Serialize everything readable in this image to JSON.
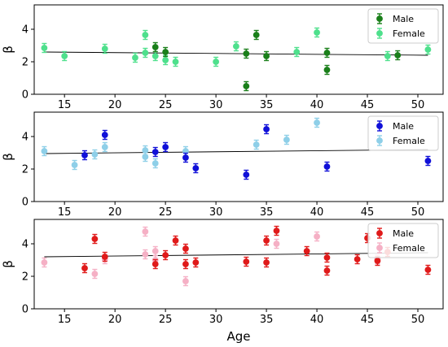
{
  "chart_data": [
    {
      "type": "scatter",
      "ylabel": "β",
      "xlabel": "",
      "xlim": [
        12,
        52.5
      ],
      "ylim": [
        0,
        5.5
      ],
      "x_ticks": [
        "15",
        "20",
        "25",
        "30",
        "35",
        "40",
        "45",
        "50"
      ],
      "y_ticks": [
        "0",
        "2",
        "4"
      ],
      "legend_position": "top-right",
      "series": [
        {
          "name": "Male",
          "color": "#1a7f1a",
          "points": [
            [
              24,
              2.9
            ],
            [
              25,
              2.6
            ],
            [
              33,
              2.5
            ],
            [
              33,
              0.5
            ],
            [
              34,
              3.65
            ],
            [
              35,
              2.35
            ],
            [
              41,
              2.55
            ],
            [
              41,
              1.5
            ],
            [
              48,
              2.4
            ]
          ]
        },
        {
          "name": "Female",
          "color": "#4ee08c",
          "points": [
            [
              13,
              2.85
            ],
            [
              15,
              2.35
            ],
            [
              19,
              2.8
            ],
            [
              22,
              2.25
            ],
            [
              23,
              2.55
            ],
            [
              23,
              3.65
            ],
            [
              24,
              2.35
            ],
            [
              25,
              2.1
            ],
            [
              26,
              2.0
            ],
            [
              30,
              2.0
            ],
            [
              32,
              2.95
            ],
            [
              38,
              2.6
            ],
            [
              40,
              3.8
            ],
            [
              47,
              2.35
            ],
            [
              51,
              2.75
            ]
          ]
        }
      ],
      "trend": {
        "x": [
          13,
          51
        ],
        "y": [
          2.6,
          2.4
        ]
      }
    },
    {
      "type": "scatter",
      "ylabel": "β",
      "xlabel": "",
      "xlim": [
        12,
        52.5
      ],
      "ylim": [
        0,
        5.5
      ],
      "x_ticks": [
        "15",
        "20",
        "25",
        "30",
        "35",
        "40",
        "45",
        "50"
      ],
      "y_ticks": [
        "0",
        "2",
        "4"
      ],
      "legend_position": "top-right",
      "series": [
        {
          "name": "Male",
          "color": "#1010d8",
          "points": [
            [
              17,
              2.85
            ],
            [
              19,
              4.1
            ],
            [
              24,
              3.05
            ],
            [
              25,
              3.35
            ],
            [
              27,
              2.7
            ],
            [
              28,
              2.05
            ],
            [
              33,
              1.65
            ],
            [
              35,
              4.45
            ],
            [
              41,
              2.15
            ],
            [
              51,
              2.5
            ]
          ]
        },
        {
          "name": "Female",
          "color": "#8ecfe8",
          "points": [
            [
              13,
              3.1
            ],
            [
              16,
              2.25
            ],
            [
              18,
              2.9
            ],
            [
              19,
              3.35
            ],
            [
              23,
              3.15
            ],
            [
              23,
              2.75
            ],
            [
              24,
              2.35
            ],
            [
              27,
              3.1
            ],
            [
              34,
              3.5
            ],
            [
              37,
              3.8
            ],
            [
              40,
              4.85
            ]
          ]
        }
      ],
      "trend": {
        "x": [
          13,
          51
        ],
        "y": [
          2.95,
          3.2
        ]
      }
    },
    {
      "type": "scatter",
      "ylabel": "β",
      "xlabel": "Age",
      "xlim": [
        12,
        52.5
      ],
      "ylim": [
        0,
        5.5
      ],
      "x_ticks": [
        "15",
        "20",
        "25",
        "30",
        "35",
        "40",
        "45",
        "50"
      ],
      "y_ticks": [
        "0",
        "2",
        "4"
      ],
      "legend_position": "top-right",
      "series": [
        {
          "name": "Male",
          "color": "#e01a1a",
          "points": [
            [
              17,
              2.5
            ],
            [
              18,
              4.3
            ],
            [
              19,
              3.2
            ],
            [
              24,
              2.75
            ],
            [
              25,
              3.3
            ],
            [
              26,
              4.2
            ],
            [
              27,
              3.7
            ],
            [
              27,
              2.75
            ],
            [
              28,
              2.85
            ],
            [
              33,
              2.9
            ],
            [
              35,
              2.85
            ],
            [
              35,
              4.2
            ],
            [
              36,
              4.8
            ],
            [
              39,
              3.55
            ],
            [
              41,
              3.15
            ],
            [
              41,
              2.35
            ],
            [
              44,
              3.05
            ],
            [
              45,
              4.35
            ],
            [
              46,
              2.95
            ],
            [
              47,
              3.5
            ],
            [
              51,
              2.4
            ]
          ]
        },
        {
          "name": "Female",
          "color": "#f5b0c5",
          "points": [
            [
              13,
              2.85
            ],
            [
              18,
              2.15
            ],
            [
              19,
              3.05
            ],
            [
              23,
              4.75
            ],
            [
              23,
              3.35
            ],
            [
              24,
              3.55
            ],
            [
              24,
              3.0
            ],
            [
              27,
              1.7
            ],
            [
              36,
              4.0
            ],
            [
              40,
              4.45
            ],
            [
              46,
              3.05
            ]
          ]
        }
      ],
      "trend": {
        "x": [
          13,
          51
        ],
        "y": [
          3.2,
          3.45
        ]
      }
    }
  ]
}
